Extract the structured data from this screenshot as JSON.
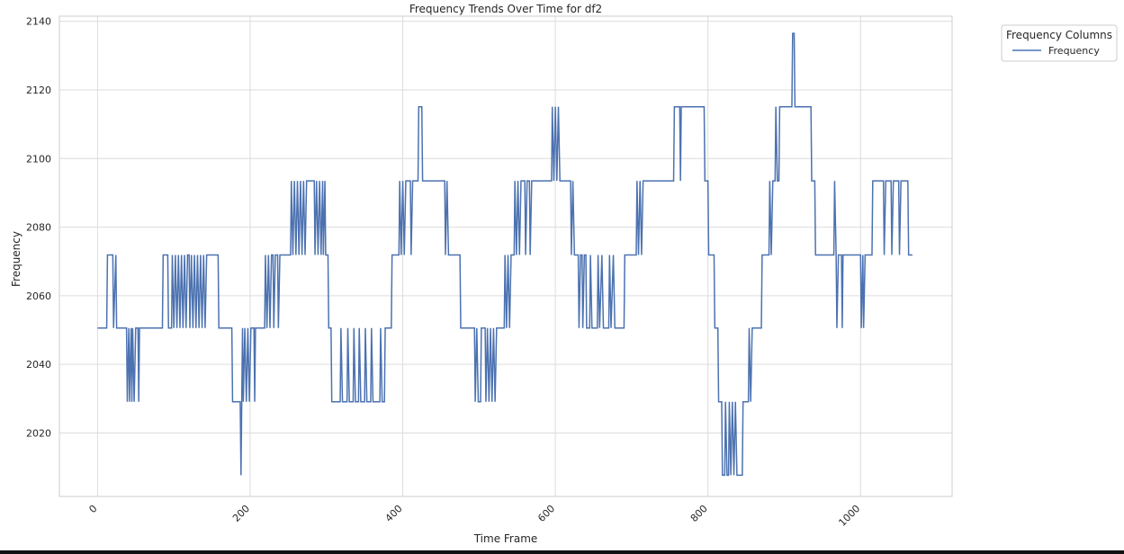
{
  "chart_data": {
    "type": "line",
    "title": "Frequency Trends Over Time for df2",
    "xlabel": "Time Frame",
    "ylabel": "Frequency",
    "xlim": [
      -50,
      1120
    ],
    "ylim": [
      2001.5,
      2141.5
    ],
    "xticks": [
      0,
      200,
      400,
      600,
      800,
      1000
    ],
    "yticks": [
      2020,
      2040,
      2060,
      2080,
      2100,
      2120,
      2140
    ],
    "x_tick_rotation_deg": 45,
    "grid": true,
    "legend": {
      "title": "Frequency Columns",
      "placement": "outside top-right",
      "entries": [
        "Frequency"
      ]
    },
    "series": [
      {
        "name": "Frequency",
        "color": "#4c72b0",
        "points": [
          [
            0,
            2050.6
          ],
          [
            12,
            2050.6
          ],
          [
            13,
            2071.9
          ],
          [
            20,
            2071.9
          ],
          [
            21,
            2050.6
          ],
          [
            24,
            2071.9
          ],
          [
            25,
            2050.6
          ],
          [
            38,
            2050.6
          ],
          [
            39,
            2029.1
          ],
          [
            41,
            2050.6
          ],
          [
            42,
            2029.1
          ],
          [
            44,
            2050.6
          ],
          [
            45,
            2029.1
          ],
          [
            46,
            2050.6
          ],
          [
            48,
            2029.1
          ],
          [
            50,
            2050.6
          ],
          [
            53,
            2050.6
          ],
          [
            54,
            2029.1
          ],
          [
            55,
            2050.6
          ],
          [
            85,
            2050.6
          ],
          [
            86,
            2071.9
          ],
          [
            92,
            2071.9
          ],
          [
            93,
            2050.6
          ],
          [
            97,
            2050.6
          ],
          [
            98,
            2071.9
          ],
          [
            100,
            2050.6
          ],
          [
            102,
            2071.9
          ],
          [
            104,
            2050.6
          ],
          [
            106,
            2071.9
          ],
          [
            108,
            2050.6
          ],
          [
            110,
            2071.9
          ],
          [
            112,
            2050.6
          ],
          [
            114,
            2071.9
          ],
          [
            116,
            2050.6
          ],
          [
            118,
            2071.9
          ],
          [
            120,
            2071.9
          ],
          [
            121,
            2050.6
          ],
          [
            123,
            2071.9
          ],
          [
            125,
            2050.6
          ],
          [
            127,
            2071.9
          ],
          [
            129,
            2050.6
          ],
          [
            131,
            2071.9
          ],
          [
            133,
            2050.6
          ],
          [
            135,
            2071.9
          ],
          [
            137,
            2050.6
          ],
          [
            139,
            2071.9
          ],
          [
            141,
            2050.6
          ],
          [
            143,
            2071.9
          ],
          [
            158,
            2071.9
          ],
          [
            159,
            2050.6
          ],
          [
            176,
            2050.6
          ],
          [
            177,
            2029.1
          ],
          [
            187,
            2029.1
          ],
          [
            188,
            2007.7
          ],
          [
            189,
            2029.1
          ],
          [
            190,
            2050.6
          ],
          [
            191,
            2029.1
          ],
          [
            193,
            2050.6
          ],
          [
            195,
            2029.1
          ],
          [
            197,
            2050.6
          ],
          [
            199,
            2029.1
          ],
          [
            201,
            2050.6
          ],
          [
            205,
            2050.6
          ],
          [
            206,
            2029.1
          ],
          [
            207,
            2050.6
          ],
          [
            219,
            2050.6
          ],
          [
            220,
            2071.9
          ],
          [
            222,
            2050.6
          ],
          [
            224,
            2071.9
          ],
          [
            226,
            2050.6
          ],
          [
            228,
            2071.9
          ],
          [
            230,
            2071.9
          ],
          [
            231,
            2050.6
          ],
          [
            233,
            2071.9
          ],
          [
            236,
            2071.9
          ],
          [
            237,
            2050.6
          ],
          [
            239,
            2071.9
          ],
          [
            253,
            2071.9
          ],
          [
            254,
            2093.5
          ],
          [
            256,
            2071.9
          ],
          [
            258,
            2093.5
          ],
          [
            260,
            2071.9
          ],
          [
            262,
            2093.5
          ],
          [
            264,
            2071.9
          ],
          [
            266,
            2093.5
          ],
          [
            268,
            2071.9
          ],
          [
            270,
            2093.5
          ],
          [
            272,
            2071.9
          ],
          [
            274,
            2093.5
          ],
          [
            284,
            2093.5
          ],
          [
            285,
            2071.9
          ],
          [
            287,
            2093.5
          ],
          [
            289,
            2071.9
          ],
          [
            291,
            2093.5
          ],
          [
            293,
            2071.9
          ],
          [
            295,
            2093.5
          ],
          [
            296,
            2071.9
          ],
          [
            298,
            2093.5
          ],
          [
            299,
            2071.9
          ],
          [
            302,
            2071.9
          ],
          [
            303,
            2050.6
          ],
          [
            306,
            2050.6
          ],
          [
            307,
            2029.1
          ],
          [
            318,
            2029.1
          ],
          [
            319,
            2050.6
          ],
          [
            321,
            2029.1
          ],
          [
            327,
            2029.1
          ],
          [
            328,
            2050.6
          ],
          [
            330,
            2029.1
          ],
          [
            335,
            2029.1
          ],
          [
            336,
            2050.6
          ],
          [
            338,
            2029.1
          ],
          [
            342,
            2029.1
          ],
          [
            343,
            2050.6
          ],
          [
            345,
            2029.1
          ],
          [
            350,
            2029.1
          ],
          [
            351,
            2050.6
          ],
          [
            353,
            2029.1
          ],
          [
            358,
            2029.1
          ],
          [
            359,
            2050.6
          ],
          [
            361,
            2029.1
          ],
          [
            370,
            2029.1
          ],
          [
            371,
            2050.6
          ],
          [
            373,
            2029.1
          ],
          [
            376,
            2029.1
          ],
          [
            377,
            2050.6
          ],
          [
            385,
            2050.6
          ],
          [
            386,
            2071.9
          ],
          [
            395,
            2071.9
          ],
          [
            396,
            2093.5
          ],
          [
            398,
            2071.9
          ],
          [
            400,
            2093.5
          ],
          [
            402,
            2071.9
          ],
          [
            404,
            2093.5
          ],
          [
            410,
            2093.5
          ],
          [
            411,
            2071.9
          ],
          [
            413,
            2093.5
          ],
          [
            420,
            2093.5
          ],
          [
            421,
            2115.1
          ],
          [
            425,
            2115.1
          ],
          [
            426,
            2093.5
          ],
          [
            455,
            2093.5
          ],
          [
            456,
            2071.9
          ],
          [
            458,
            2093.5
          ],
          [
            460,
            2071.9
          ],
          [
            475,
            2071.9
          ],
          [
            476,
            2050.6
          ],
          [
            494,
            2050.6
          ],
          [
            495,
            2029.1
          ],
          [
            497,
            2050.6
          ],
          [
            499,
            2029.1
          ],
          [
            502,
            2029.1
          ],
          [
            503,
            2050.6
          ],
          [
            508,
            2050.6
          ],
          [
            509,
            2029.1
          ],
          [
            511,
            2050.6
          ],
          [
            513,
            2029.1
          ],
          [
            515,
            2050.6
          ],
          [
            517,
            2029.1
          ],
          [
            519,
            2050.6
          ],
          [
            521,
            2029.1
          ],
          [
            523,
            2050.6
          ],
          [
            533,
            2050.6
          ],
          [
            534,
            2071.9
          ],
          [
            536,
            2050.6
          ],
          [
            538,
            2071.9
          ],
          [
            540,
            2050.6
          ],
          [
            542,
            2071.9
          ],
          [
            546,
            2071.9
          ],
          [
            547,
            2093.5
          ],
          [
            549,
            2071.9
          ],
          [
            551,
            2093.5
          ],
          [
            553,
            2071.9
          ],
          [
            555,
            2093.5
          ],
          [
            560,
            2093.5
          ],
          [
            561,
            2071.9
          ],
          [
            563,
            2093.5
          ],
          [
            566,
            2093.5
          ],
          [
            567,
            2071.9
          ],
          [
            569,
            2093.5
          ],
          [
            595,
            2093.5
          ],
          [
            596,
            2115.1
          ],
          [
            598,
            2093.5
          ],
          [
            600,
            2115.1
          ],
          [
            602,
            2093.5
          ],
          [
            604,
            2115.1
          ],
          [
            606,
            2093.5
          ],
          [
            620,
            2093.5
          ],
          [
            621,
            2071.9
          ],
          [
            623,
            2093.5
          ],
          [
            625,
            2071.9
          ],
          [
            630,
            2071.9
          ],
          [
            631,
            2050.6
          ],
          [
            633,
            2071.9
          ],
          [
            635,
            2071.9
          ],
          [
            636,
            2050.6
          ],
          [
            638,
            2071.9
          ],
          [
            640,
            2071.9
          ],
          [
            641,
            2050.6
          ],
          [
            645,
            2050.6
          ],
          [
            646,
            2071.9
          ],
          [
            648,
            2050.6
          ],
          [
            655,
            2050.6
          ],
          [
            656,
            2071.9
          ],
          [
            658,
            2050.6
          ],
          [
            661,
            2071.9
          ],
          [
            663,
            2050.6
          ],
          [
            670,
            2050.6
          ],
          [
            671,
            2071.9
          ],
          [
            673,
            2050.6
          ],
          [
            676,
            2071.9
          ],
          [
            678,
            2050.6
          ],
          [
            690,
            2050.6
          ],
          [
            691,
            2071.9
          ],
          [
            706,
            2071.9
          ],
          [
            707,
            2093.5
          ],
          [
            709,
            2071.9
          ],
          [
            711,
            2093.5
          ],
          [
            713,
            2071.9
          ],
          [
            715,
            2093.5
          ],
          [
            755,
            2093.5
          ],
          [
            756,
            2115.1
          ],
          [
            763,
            2115.1
          ],
          [
            764,
            2093.5
          ],
          [
            765,
            2115.1
          ],
          [
            795,
            2115.1
          ],
          [
            796,
            2093.5
          ],
          [
            800,
            2093.5
          ],
          [
            801,
            2071.9
          ],
          [
            808,
            2071.9
          ],
          [
            809,
            2050.6
          ],
          [
            813,
            2050.6
          ],
          [
            814,
            2029.1
          ],
          [
            818,
            2029.1
          ],
          [
            819,
            2007.7
          ],
          [
            822,
            2007.7
          ],
          [
            823,
            2029.1
          ],
          [
            825,
            2007.7
          ],
          [
            827,
            2007.7
          ],
          [
            828,
            2029.1
          ],
          [
            830,
            2007.7
          ],
          [
            832,
            2029.1
          ],
          [
            834,
            2007.7
          ],
          [
            836,
            2029.1
          ],
          [
            838,
            2007.7
          ],
          [
            845,
            2007.7
          ],
          [
            846,
            2029.1
          ],
          [
            853,
            2029.1
          ],
          [
            854,
            2050.6
          ],
          [
            856,
            2029.1
          ],
          [
            858,
            2050.6
          ],
          [
            870,
            2050.6
          ],
          [
            871,
            2071.9
          ],
          [
            880,
            2071.9
          ],
          [
            881,
            2093.5
          ],
          [
            883,
            2071.9
          ],
          [
            885,
            2093.5
          ],
          [
            888,
            2093.5
          ],
          [
            889,
            2115.1
          ],
          [
            891,
            2093.5
          ],
          [
            893,
            2093.5
          ],
          [
            894,
            2115.1
          ],
          [
            910,
            2115.1
          ],
          [
            911,
            2136.5
          ],
          [
            913,
            2136.5
          ],
          [
            914,
            2115.1
          ],
          [
            935,
            2115.1
          ],
          [
            936,
            2093.5
          ],
          [
            940,
            2093.5
          ],
          [
            941,
            2071.9
          ],
          [
            965,
            2071.9
          ],
          [
            966,
            2093.5
          ],
          [
            968,
            2071.9
          ],
          [
            969,
            2050.6
          ],
          [
            971,
            2071.9
          ],
          [
            975,
            2071.9
          ],
          [
            976,
            2050.6
          ],
          [
            977,
            2071.9
          ],
          [
            1000,
            2071.9
          ],
          [
            1001,
            2050.6
          ],
          [
            1003,
            2071.9
          ],
          [
            1004,
            2050.6
          ],
          [
            1006,
            2071.9
          ],
          [
            1015,
            2071.9
          ],
          [
            1016,
            2093.5
          ],
          [
            1030,
            2093.5
          ],
          [
            1031,
            2071.9
          ],
          [
            1033,
            2093.5
          ],
          [
            1040,
            2093.5
          ],
          [
            1041,
            2071.9
          ],
          [
            1043,
            2093.5
          ],
          [
            1050,
            2093.5
          ],
          [
            1051,
            2071.9
          ],
          [
            1053,
            2093.5
          ],
          [
            1062,
            2093.5
          ],
          [
            1063,
            2071.9
          ],
          [
            1068,
            2071.9
          ]
        ]
      }
    ]
  }
}
